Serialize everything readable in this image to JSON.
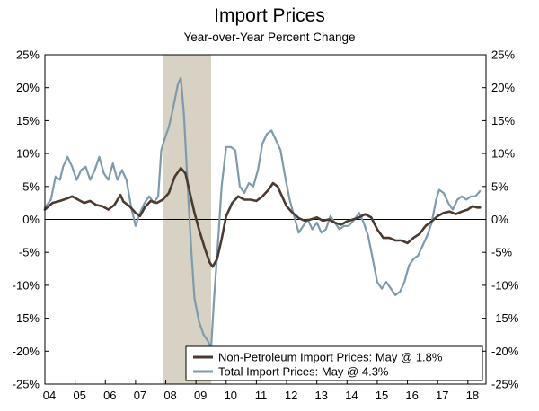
{
  "chart_data": {
    "type": "line",
    "title": "Import Prices",
    "subtitle": "Year-over-Year Percent Change",
    "xlabel": "",
    "ylabel": "",
    "x_ticks": [
      "04",
      "05",
      "06",
      "07",
      "08",
      "09",
      "10",
      "11",
      "12",
      "13",
      "14",
      "15",
      "16",
      "17",
      "18"
    ],
    "y_ticks": [
      "25%",
      "20%",
      "15%",
      "10%",
      "5%",
      "0%",
      "-5%",
      "-10%",
      "-15%",
      "-20%",
      "-25%"
    ],
    "xlim": [
      2004.0,
      2018.6
    ],
    "ylim": [
      -25,
      25
    ],
    "y_axis_left": true,
    "y_axis_right": true,
    "zero_line": true,
    "grid": false,
    "legend_position": "bottom-right",
    "recession_shading": {
      "start": 2007.92,
      "end": 2009.5,
      "color": "#d7d2c4"
    },
    "series": [
      {
        "name": "Non-Petroleum Import Prices: May @ 1.8%",
        "color": "#4a3a30",
        "points": [
          [
            2004.0,
            1.5
          ],
          [
            2004.25,
            2.5
          ],
          [
            2004.5,
            2.8
          ],
          [
            2004.75,
            3.2
          ],
          [
            2004.9,
            3.5
          ],
          [
            2005.1,
            3.0
          ],
          [
            2005.3,
            2.5
          ],
          [
            2005.5,
            2.8
          ],
          [
            2005.7,
            2.2
          ],
          [
            2005.9,
            2.0
          ],
          [
            2006.1,
            1.5
          ],
          [
            2006.3,
            2.2
          ],
          [
            2006.5,
            3.7
          ],
          [
            2006.6,
            2.7
          ],
          [
            2006.8,
            2.0
          ],
          [
            2007.0,
            1.0
          ],
          [
            2007.15,
            0.5
          ],
          [
            2007.3,
            1.8
          ],
          [
            2007.5,
            2.8
          ],
          [
            2007.7,
            2.5
          ],
          [
            2007.9,
            3.0
          ],
          [
            2008.1,
            4.0
          ],
          [
            2008.3,
            6.5
          ],
          [
            2008.5,
            7.8
          ],
          [
            2008.65,
            7.0
          ],
          [
            2008.8,
            4.0
          ],
          [
            2008.95,
            1.0
          ],
          [
            2009.1,
            -1.5
          ],
          [
            2009.3,
            -4.5
          ],
          [
            2009.45,
            -6.5
          ],
          [
            2009.55,
            -7.2
          ],
          [
            2009.7,
            -6.0
          ],
          [
            2009.85,
            -3.0
          ],
          [
            2010.0,
            0.5
          ],
          [
            2010.2,
            2.5
          ],
          [
            2010.4,
            3.5
          ],
          [
            2010.6,
            3.0
          ],
          [
            2010.8,
            3.0
          ],
          [
            2011.0,
            2.8
          ],
          [
            2011.2,
            3.5
          ],
          [
            2011.4,
            4.5
          ],
          [
            2011.55,
            5.5
          ],
          [
            2011.7,
            5.0
          ],
          [
            2011.85,
            3.5
          ],
          [
            2012.0,
            2.0
          ],
          [
            2012.2,
            1.0
          ],
          [
            2012.4,
            0.2
          ],
          [
            2012.6,
            -0.2
          ],
          [
            2012.8,
            0.0
          ],
          [
            2013.0,
            0.3
          ],
          [
            2013.2,
            -0.2
          ],
          [
            2013.4,
            0.0
          ],
          [
            2013.6,
            -0.5
          ],
          [
            2013.8,
            -0.8
          ],
          [
            2014.0,
            -0.3
          ],
          [
            2014.2,
            0.0
          ],
          [
            2014.4,
            0.3
          ],
          [
            2014.6,
            0.8
          ],
          [
            2014.8,
            0.3
          ],
          [
            2015.0,
            -1.5
          ],
          [
            2015.2,
            -2.8
          ],
          [
            2015.4,
            -2.8
          ],
          [
            2015.6,
            -3.2
          ],
          [
            2015.8,
            -3.2
          ],
          [
            2016.0,
            -3.6
          ],
          [
            2016.2,
            -2.8
          ],
          [
            2016.4,
            -2.2
          ],
          [
            2016.6,
            -1.0
          ],
          [
            2016.8,
            -0.3
          ],
          [
            2017.0,
            0.5
          ],
          [
            2017.2,
            1.0
          ],
          [
            2017.4,
            1.2
          ],
          [
            2017.6,
            0.8
          ],
          [
            2017.8,
            1.2
          ],
          [
            2018.0,
            1.5
          ],
          [
            2018.15,
            2.0
          ],
          [
            2018.3,
            1.8
          ],
          [
            2018.4,
            1.8
          ]
        ]
      },
      {
        "name": "Total Import Prices: May @ 4.3%",
        "color": "#7e9bae",
        "points": [
          [
            2004.0,
            1.8
          ],
          [
            2004.2,
            3.0
          ],
          [
            2004.35,
            6.5
          ],
          [
            2004.5,
            6.0
          ],
          [
            2004.6,
            8.0
          ],
          [
            2004.75,
            9.5
          ],
          [
            2004.9,
            8.0
          ],
          [
            2005.05,
            6.0
          ],
          [
            2005.2,
            7.5
          ],
          [
            2005.35,
            8.0
          ],
          [
            2005.5,
            6.0
          ],
          [
            2005.65,
            7.5
          ],
          [
            2005.8,
            9.5
          ],
          [
            2005.95,
            7.0
          ],
          [
            2006.1,
            6.0
          ],
          [
            2006.25,
            8.5
          ],
          [
            2006.4,
            6.0
          ],
          [
            2006.55,
            7.5
          ],
          [
            2006.7,
            6.0
          ],
          [
            2006.85,
            2.0
          ],
          [
            2007.0,
            -1.0
          ],
          [
            2007.15,
            1.0
          ],
          [
            2007.3,
            2.5
          ],
          [
            2007.45,
            3.5
          ],
          [
            2007.6,
            2.5
          ],
          [
            2007.75,
            3.5
          ],
          [
            2007.85,
            10.5
          ],
          [
            2007.95,
            12.0
          ],
          [
            2008.1,
            14.0
          ],
          [
            2008.25,
            17.0
          ],
          [
            2008.4,
            20.5
          ],
          [
            2008.5,
            21.5
          ],
          [
            2008.6,
            16.0
          ],
          [
            2008.75,
            3.0
          ],
          [
            2008.85,
            -5.0
          ],
          [
            2008.95,
            -12.0
          ],
          [
            2009.1,
            -15.5
          ],
          [
            2009.25,
            -17.5
          ],
          [
            2009.4,
            -18.5
          ],
          [
            2009.5,
            -19.5
          ],
          [
            2009.6,
            -12.0
          ],
          [
            2009.75,
            -2.0
          ],
          [
            2009.85,
            5.0
          ],
          [
            2010.0,
            11.0
          ],
          [
            2010.15,
            11.0
          ],
          [
            2010.3,
            10.5
          ],
          [
            2010.45,
            5.0
          ],
          [
            2010.6,
            4.0
          ],
          [
            2010.75,
            5.5
          ],
          [
            2010.9,
            5.0
          ],
          [
            2011.05,
            7.5
          ],
          [
            2011.2,
            11.5
          ],
          [
            2011.35,
            13.0
          ],
          [
            2011.5,
            13.5
          ],
          [
            2011.65,
            12.0
          ],
          [
            2011.8,
            10.5
          ],
          [
            2011.95,
            6.5
          ],
          [
            2012.1,
            3.0
          ],
          [
            2012.25,
            0.5
          ],
          [
            2012.4,
            -2.0
          ],
          [
            2012.55,
            -1.0
          ],
          [
            2012.7,
            0.0
          ],
          [
            2012.85,
            -1.5
          ],
          [
            2013.0,
            -0.5
          ],
          [
            2013.15,
            -2.0
          ],
          [
            2013.3,
            -1.5
          ],
          [
            2013.45,
            0.5
          ],
          [
            2013.6,
            -0.5
          ],
          [
            2013.75,
            -1.5
          ],
          [
            2013.9,
            -1.0
          ],
          [
            2014.05,
            -1.0
          ],
          [
            2014.25,
            0.0
          ],
          [
            2014.4,
            1.0
          ],
          [
            2014.55,
            -0.5
          ],
          [
            2014.7,
            -2.5
          ],
          [
            2014.85,
            -6.0
          ],
          [
            2015.0,
            -9.5
          ],
          [
            2015.15,
            -10.5
          ],
          [
            2015.3,
            -9.5
          ],
          [
            2015.45,
            -10.5
          ],
          [
            2015.6,
            -11.5
          ],
          [
            2015.75,
            -11.0
          ],
          [
            2015.9,
            -9.5
          ],
          [
            2016.05,
            -7.0
          ],
          [
            2016.2,
            -6.0
          ],
          [
            2016.35,
            -5.5
          ],
          [
            2016.5,
            -4.0
          ],
          [
            2016.65,
            -2.5
          ],
          [
            2016.8,
            -0.5
          ],
          [
            2016.95,
            3.0
          ],
          [
            2017.05,
            4.5
          ],
          [
            2017.2,
            4.0
          ],
          [
            2017.35,
            2.5
          ],
          [
            2017.5,
            1.5
          ],
          [
            2017.65,
            3.0
          ],
          [
            2017.8,
            3.5
          ],
          [
            2017.95,
            3.0
          ],
          [
            2018.1,
            3.5
          ],
          [
            2018.25,
            3.5
          ],
          [
            2018.4,
            4.3
          ]
        ]
      }
    ]
  }
}
